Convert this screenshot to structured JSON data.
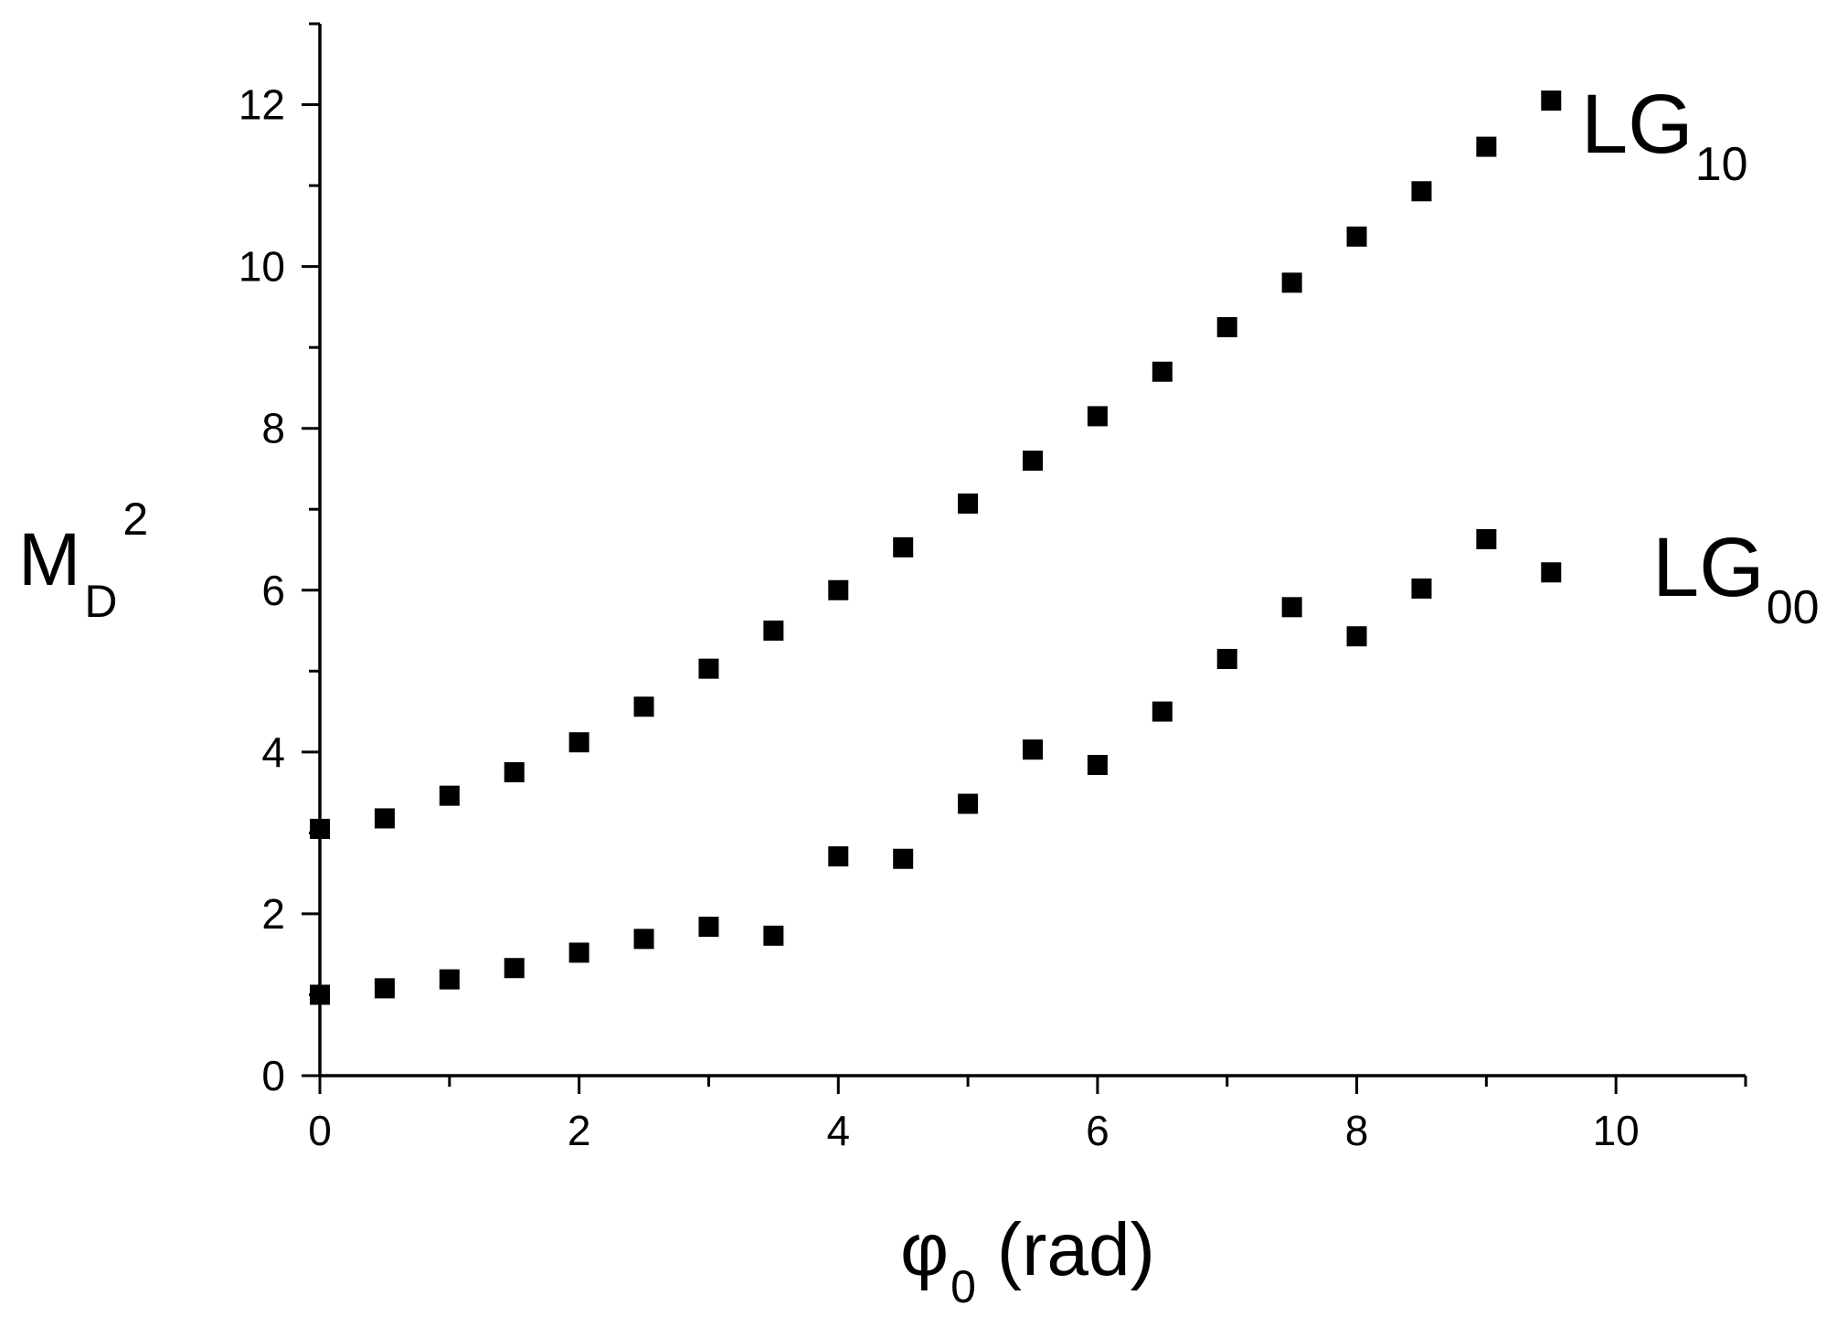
{
  "chart_data": {
    "type": "scatter",
    "xlabel": {
      "symbol": "φ",
      "subscript": "0",
      "rest": " (rad)"
    },
    "ylabel": {
      "base": "M",
      "subscript": "D",
      "superscript": "2"
    },
    "xlim": [
      0,
      11
    ],
    "ylim": [
      0,
      13
    ],
    "xticks": [
      0,
      2,
      4,
      6,
      8,
      10
    ],
    "yticks": [
      0,
      2,
      4,
      6,
      8,
      10,
      12
    ],
    "xminor": [
      1,
      3,
      5,
      7,
      9,
      11
    ],
    "yminor": [
      1,
      3,
      5,
      7,
      9,
      11,
      13
    ],
    "grid": false,
    "x": [
      0,
      0.5,
      1,
      1.5,
      2,
      2.5,
      3,
      3.5,
      4,
      4.5,
      5,
      5.5,
      6,
      6.5,
      7,
      7.5,
      8,
      8.5,
      9,
      9.5
    ],
    "series": [
      {
        "name": "LG",
        "subscript": "10",
        "marker": "square",
        "values": [
          3.05,
          3.18,
          3.46,
          3.75,
          4.12,
          4.56,
          5.03,
          5.5,
          6.0,
          6.53,
          7.07,
          7.6,
          8.15,
          8.7,
          9.25,
          9.8,
          10.37,
          10.93,
          11.48,
          12.05
        ]
      },
      {
        "name": "LG",
        "subscript": "00",
        "marker": "square",
        "values": [
          1.0,
          1.08,
          1.19,
          1.33,
          1.52,
          1.69,
          1.84,
          1.73,
          2.71,
          2.68,
          3.36,
          4.03,
          3.84,
          4.5,
          5.15,
          5.79,
          5.43,
          6.02,
          6.63,
          6.22
        ]
      }
    ]
  }
}
